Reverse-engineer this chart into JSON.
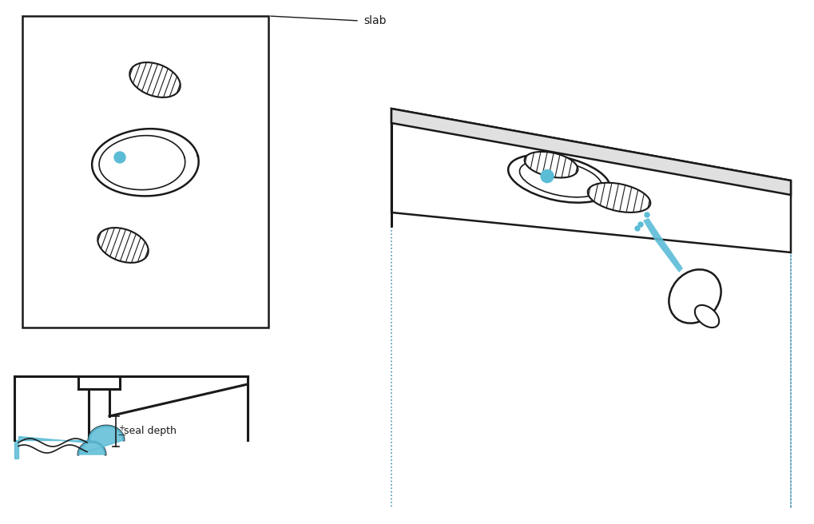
{
  "bg_color": "#ffffff",
  "line_color": "#1a1a1a",
  "blue_color": "#5bbcd6",
  "label_color": "#1a1a1a",
  "slab_label": "slab",
  "seal_label": "seal depth",
  "dot_color": "#5bbcd6"
}
